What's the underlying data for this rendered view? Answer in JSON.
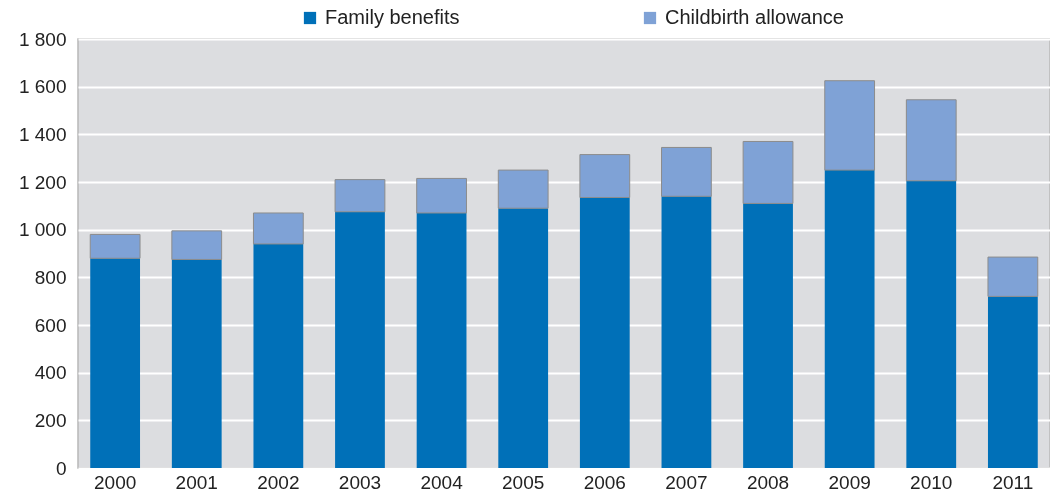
{
  "chart_data": {
    "type": "bar",
    "stacked": true,
    "categories": [
      "2000",
      "2001",
      "2002",
      "2003",
      "2004",
      "2005",
      "2006",
      "2007",
      "2008",
      "2009",
      "2010",
      "2011"
    ],
    "series": [
      {
        "name": "Family benefits",
        "color": "#0070b8",
        "values": [
          880,
          875,
          940,
          1075,
          1070,
          1090,
          1135,
          1140,
          1110,
          1250,
          1205,
          720
        ]
      },
      {
        "name": "Childbirth allowance",
        "color": "#7fa2d6",
        "values": [
          100,
          120,
          130,
          135,
          145,
          160,
          180,
          205,
          260,
          375,
          340,
          165
        ]
      }
    ],
    "ylim": [
      0,
      1800
    ],
    "yticks": [
      0,
      200,
      400,
      600,
      800,
      {
        "value": 1000,
        "label": "1 000"
      },
      {
        "value": 1200,
        "label": "1 200"
      },
      {
        "value": 1400,
        "label": "1 400"
      },
      {
        "value": 1600,
        "label": "1 600"
      },
      {
        "value": 1800,
        "label": "1 800"
      }
    ],
    "grid": "y",
    "legend": "top"
  }
}
